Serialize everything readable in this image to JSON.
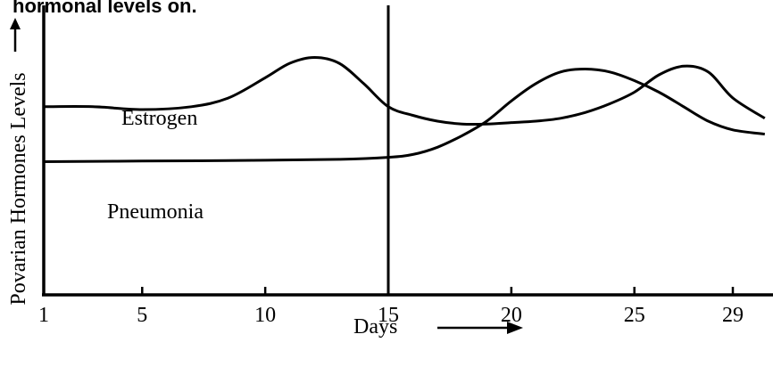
{
  "header": {
    "caption": "hormonal levels on."
  },
  "chart_data": {
    "type": "line",
    "title": "",
    "xlabel": "Days",
    "ylabel": "Povarian Hormones Levels",
    "x_ticks": [
      1,
      5,
      10,
      15,
      20,
      25,
      29
    ],
    "xlim": [
      1,
      30.3
    ],
    "marker": {
      "day": 15
    },
    "series": [
      {
        "name": "Estrogen",
        "x": [
          1,
          3,
          5,
          7,
          8.5,
          10,
          11,
          12,
          13,
          14,
          15,
          16,
          17,
          18,
          19,
          20,
          21,
          22,
          23,
          24,
          25,
          26,
          27,
          28,
          29,
          30.3
        ],
        "y": [
          6.5,
          6.5,
          6.4,
          6.5,
          6.8,
          7.5,
          8.0,
          8.2,
          8.0,
          7.3,
          6.5,
          6.2,
          6.0,
          5.9,
          5.9,
          5.95,
          6.0,
          6.1,
          6.3,
          6.6,
          7.0,
          7.6,
          7.9,
          7.7,
          6.8,
          6.1
        ]
      },
      {
        "name": "Pneumonia",
        "x": [
          1,
          5,
          10,
          13,
          15,
          16,
          17,
          18,
          19,
          20,
          21,
          22,
          23,
          24,
          25,
          26,
          27,
          28,
          29,
          30.3
        ],
        "y": [
          4.6,
          4.62,
          4.65,
          4.68,
          4.75,
          4.85,
          5.1,
          5.5,
          6.0,
          6.7,
          7.3,
          7.7,
          7.8,
          7.7,
          7.4,
          7.0,
          6.5,
          6.0,
          5.7,
          5.55
        ]
      }
    ]
  },
  "colors": {
    "ink": "#000000",
    "background": "#ffffff"
  }
}
